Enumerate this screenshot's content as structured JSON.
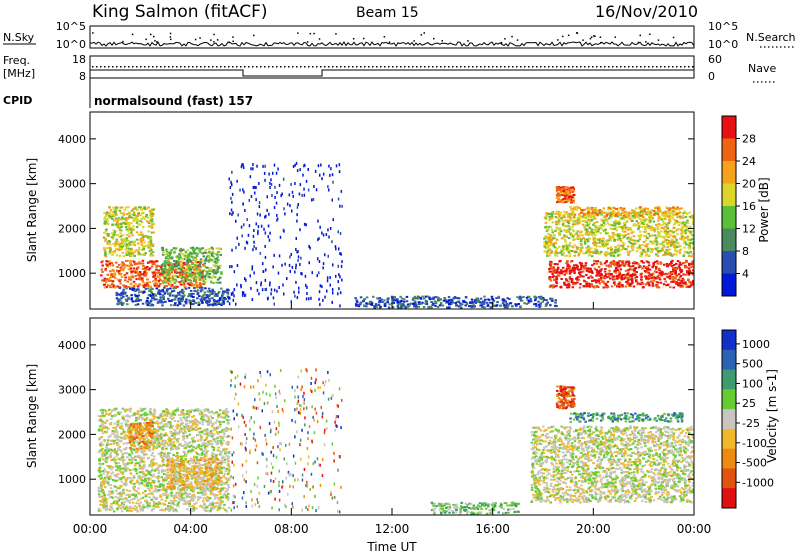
{
  "header": {
    "station": "King Salmon (fitACF)",
    "beam": "Beam 15",
    "date": "16/Nov/2010"
  },
  "status_panels": {
    "nsky_label": "N.Sky",
    "nsky_ticks": [
      "10^5",
      "10^0"
    ],
    "nsearch_label": "N.Search",
    "freq_label_top": "Freq.",
    "freq_label_unit": "[MHz]",
    "freq_ticks": [
      "18",
      "8"
    ],
    "nave_ticks": [
      "60",
      "0"
    ],
    "nave_label": "Nave",
    "cpid_label": "CPID",
    "cpid_text": "normalsound (fast) 157"
  },
  "colors": {
    "power_scale": [
      "#0018d8",
      "#2a4eb0",
      "#4a8a5e",
      "#5bbf3a",
      "#dcd62c",
      "#f5a21c",
      "#ee6414",
      "#e81010"
    ],
    "velocity_scale": [
      "#1030c8",
      "#2c62b4",
      "#3f9a70",
      "#66cc33",
      "#c7c5bd",
      "#f1b82a",
      "#ec8a12",
      "#e25210",
      "#e01010"
    ]
  },
  "chart_data": [
    {
      "type": "heatmap",
      "panel": "power",
      "ylabel": "Slant Range [km]",
      "yticks": [
        "1000",
        "2000",
        "3000",
        "4000"
      ],
      "ylim": [
        200,
        4600
      ],
      "xlim": [
        0,
        24
      ],
      "colorbar_label": "Power [dB]",
      "colorbar_ticks": [
        "28",
        "24",
        "20",
        "16",
        "12",
        "8",
        "4"
      ],
      "regions": [
        {
          "t": [
            0.4,
            4.5
          ],
          "r": [
            700,
            1300
          ],
          "level": 6
        },
        {
          "t": [
            0.5,
            2.5
          ],
          "r": [
            1400,
            2500
          ],
          "level": 4
        },
        {
          "t": [
            2.8,
            5.2
          ],
          "r": [
            800,
            1600
          ],
          "level": 3
        },
        {
          "t": [
            1.0,
            5.5
          ],
          "r": [
            300,
            700
          ],
          "level": 1
        },
        {
          "t": [
            5.5,
            10.0
          ],
          "r": [
            300,
            3500
          ],
          "level": 0
        },
        {
          "t": [
            10.5,
            18.5
          ],
          "r": [
            250,
            500
          ],
          "level": 1
        },
        {
          "t": [
            18.2,
            24.0
          ],
          "r": [
            700,
            1300
          ],
          "level": 7
        },
        {
          "t": [
            18.0,
            24.0
          ],
          "r": [
            1400,
            2400
          ],
          "level": 4
        },
        {
          "t": [
            19.0,
            23.5
          ],
          "r": [
            2300,
            2500
          ],
          "level": 5
        },
        {
          "t": [
            18.5,
            19.2
          ],
          "r": [
            2600,
            2950
          ],
          "level": 6
        }
      ]
    },
    {
      "type": "heatmap",
      "panel": "velocity",
      "ylabel": "Slant Range [km]",
      "yticks": [
        "1000",
        "2000",
        "3000",
        "4000"
      ],
      "ylim": [
        200,
        4600
      ],
      "xlim": [
        0,
        24
      ],
      "xlabel": "Time UT",
      "xticks": [
        "00:00",
        "04:00",
        "08:00",
        "12:00",
        "16:00",
        "20:00",
        "00:00"
      ],
      "colorbar_label": "Velocity [m s-1]",
      "colorbar_ticks": [
        "1000",
        "500",
        "100",
        "25",
        "-25",
        "-100",
        "-500",
        "-1000"
      ],
      "regions": [
        {
          "t": [
            0.3,
            5.5
          ],
          "r": [
            300,
            2600
          ],
          "level": 4
        },
        {
          "t": [
            3.0,
            5.2
          ],
          "r": [
            800,
            1500
          ],
          "level": 5
        },
        {
          "t": [
            1.5,
            2.5
          ],
          "r": [
            1700,
            2300
          ],
          "level": 6
        },
        {
          "t": [
            5.5,
            10.0
          ],
          "r": [
            300,
            3500
          ],
          "level": 6
        },
        {
          "t": [
            13.5,
            17.0
          ],
          "r": [
            250,
            500
          ],
          "level": 3
        },
        {
          "t": [
            17.5,
            24.0
          ],
          "r": [
            500,
            2200
          ],
          "level": 4
        },
        {
          "t": [
            19.0,
            23.5
          ],
          "r": [
            2300,
            2500
          ],
          "level": 2
        },
        {
          "t": [
            18.5,
            19.2
          ],
          "r": [
            2600,
            3100
          ],
          "level": 7
        }
      ]
    }
  ]
}
